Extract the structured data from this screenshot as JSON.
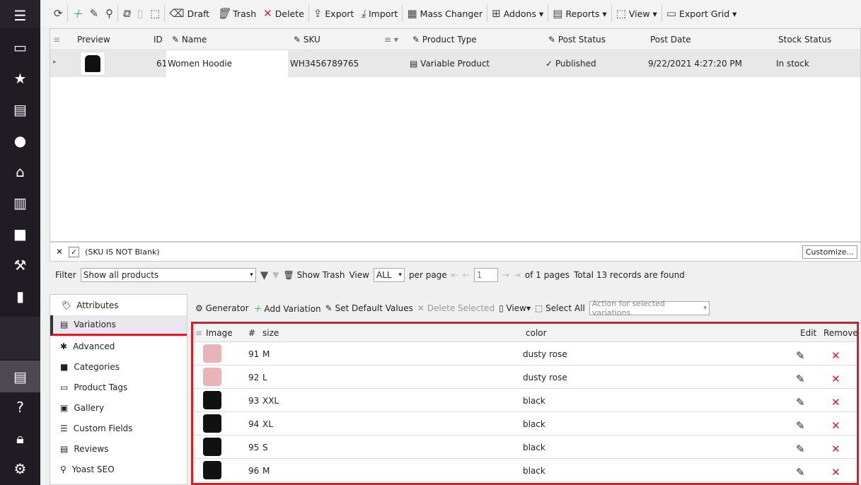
{
  "sidebar": {
    "icons": [
      "menu-icon",
      "store-icon",
      "star-icon",
      "inbox-icon",
      "user-icon",
      "basket-icon",
      "chart-icon",
      "puzzle-icon",
      "wrench-icon",
      "carousel-icon",
      "inbox-active-icon",
      "help-icon",
      "lock-icon",
      "gear-icon"
    ]
  },
  "toolbar": {
    "draft": "Draft",
    "trash": "Trash",
    "delete": "Delete",
    "export": "Export",
    "import": "Import",
    "mass_changer": "Mass Changer",
    "addons": "Addons",
    "reports": "Reports",
    "view": "View",
    "export_grid": "Export Grid"
  },
  "grid": {
    "headers": {
      "preview": "Preview",
      "id": "ID",
      "name": "Name",
      "sku": "SKU",
      "product_type": "Product Type",
      "post_status": "Post Status",
      "post_date": "Post Date",
      "stock_status": "Stock Status"
    },
    "row": {
      "id": "61",
      "name": "Women Hoodie",
      "sku": "WH3456789765",
      "product_type": "Variable Product",
      "post_status": "Published",
      "post_date": "9/22/2021 4:27:20 PM",
      "stock_status": "In stock"
    }
  },
  "filter_row": {
    "text": "(SKU IS NOT Blank)",
    "customize": "Customize..."
  },
  "filter_bar": {
    "filter_label": "Filter",
    "filter_value": "Show all products",
    "show_trash": "Show Trash",
    "view_label": "View",
    "view_value": "ALL",
    "per_page": "per page",
    "page": "1",
    "of_pages": "of 1 pages",
    "total": "Total 13 records are found"
  },
  "tabs": [
    "Attributes",
    "Variations",
    "Advanced",
    "Categories",
    "Product Tags",
    "Gallery",
    "Custom Fields",
    "Reviews",
    "Yoast SEO"
  ],
  "active_tab": "Variations",
  "var_toolbar": {
    "generator": "Generator",
    "add": "Add Variation",
    "defaults": "Set Default Values",
    "delete_sel": "Delete Selected",
    "view": "View",
    "select_all": "Select All",
    "action_placeholder": "Action for selected variations"
  },
  "var_grid": {
    "headers": {
      "image": "Image",
      "num": "#",
      "size": "size",
      "color": "color",
      "edit": "Edit",
      "remove": "Remove"
    },
    "rows": [
      {
        "id": "91",
        "size": "M",
        "color": "dusty rose"
      },
      {
        "id": "92",
        "size": "L",
        "color": "dusty rose"
      },
      {
        "id": "93",
        "size": "XXL",
        "color": "black"
      },
      {
        "id": "94",
        "size": "XL",
        "color": "black"
      },
      {
        "id": "95",
        "size": "S",
        "color": "black"
      },
      {
        "id": "96",
        "size": "M",
        "color": "black"
      }
    ]
  },
  "colors": {
    "accent_red": "#d3202a",
    "sidebar": "#1f1c24"
  }
}
